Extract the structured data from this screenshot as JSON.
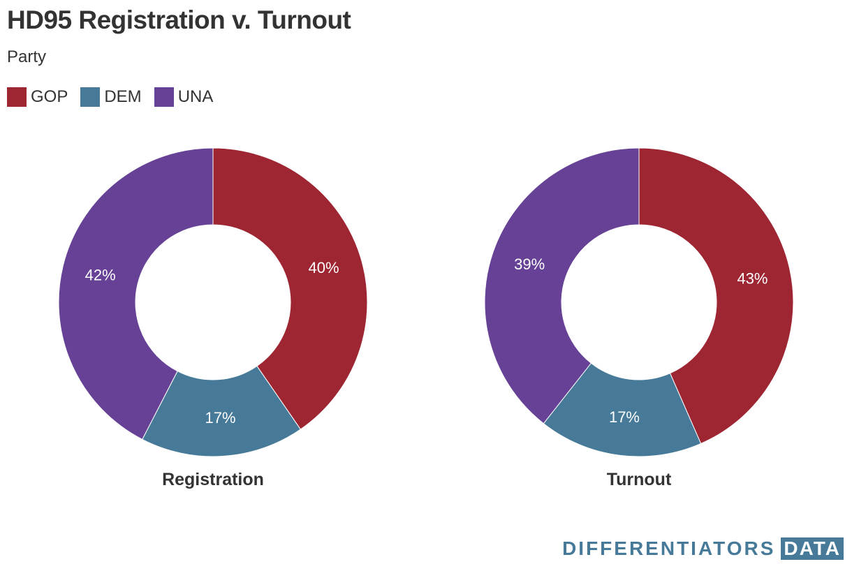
{
  "title": "HD95 Registration v. Turnout",
  "subtitle": "Party",
  "legend": [
    {
      "label": "GOP",
      "color": "#9e2633"
    },
    {
      "label": "DEM",
      "color": "#467a98"
    },
    {
      "label": "UNA",
      "color": "#674196"
    }
  ],
  "chart_data": [
    {
      "type": "pie",
      "title": "Registration",
      "categories": [
        "GOP",
        "DEM",
        "UNA"
      ],
      "values": [
        40,
        17,
        42
      ],
      "labels": [
        "40%",
        "17%",
        "42%"
      ],
      "colors": [
        "#9e2633",
        "#467a98",
        "#674196"
      ]
    },
    {
      "type": "pie",
      "title": "Turnout",
      "categories": [
        "GOP",
        "DEM",
        "UNA"
      ],
      "values": [
        43,
        17,
        39
      ],
      "labels": [
        "43%",
        "17%",
        "39%"
      ],
      "colors": [
        "#9e2633",
        "#467a98",
        "#674196"
      ]
    }
  ],
  "brand": {
    "text": "DIFFERENTIATORS",
    "box": "DATA"
  }
}
